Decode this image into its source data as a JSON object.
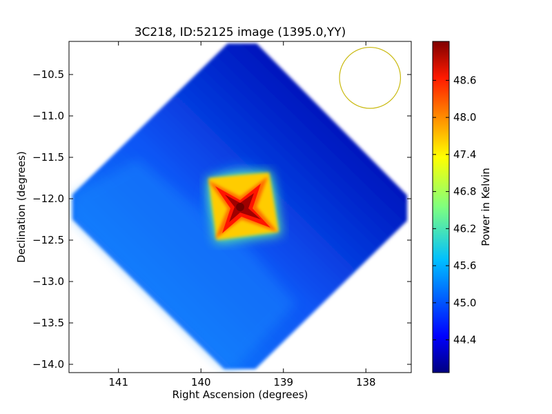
{
  "chart_data": {
    "type": "heatmap",
    "title": "3C218, ID:52125 image (1395.0,YY)",
    "xlabel": "Right Ascension (degrees)",
    "ylabel": "Declination (degrees)",
    "xlim": [
      141.6,
      137.45
    ],
    "ylim": [
      -14.1,
      -10.1
    ],
    "x_axis_inverted": true,
    "xticks": [
      141,
      140,
      139,
      138
    ],
    "xtick_labels": [
      "141",
      "140",
      "139",
      "138"
    ],
    "yticks": [
      -10.5,
      -11.0,
      -11.5,
      -12.0,
      -12.5,
      -13.0,
      -13.5,
      -14.0
    ],
    "ytick_labels": [
      "−10.5",
      "−11.0",
      "−11.5",
      "−12.0",
      "−12.5",
      "−13.0",
      "−13.5",
      "−14.0"
    ],
    "colormap": "jet",
    "colorbar": {
      "label": "Power in Kelvin",
      "vmin": 43.87,
      "vmax": 49.23,
      "ticks": [
        44.4,
        45.0,
        45.6,
        46.2,
        46.8,
        47.4,
        48.0,
        48.6
      ],
      "tick_labels": [
        "44.4",
        "45.0",
        "45.6",
        "46.2",
        "46.8",
        "47.4",
        "48.0",
        "48.6"
      ]
    },
    "field": {
      "shape": "diamond",
      "center": [
        139.55,
        -12.08
      ],
      "half_width_deg": 2.45,
      "half_height_deg": 2.0,
      "background_power": 44.7,
      "source_peak_power": 49.2,
      "source_position": [
        139.5,
        -12.1
      ]
    },
    "beam_circle": {
      "center": [
        137.95,
        -10.54
      ],
      "radius_deg": 0.37,
      "color": "#c9b90e"
    }
  }
}
